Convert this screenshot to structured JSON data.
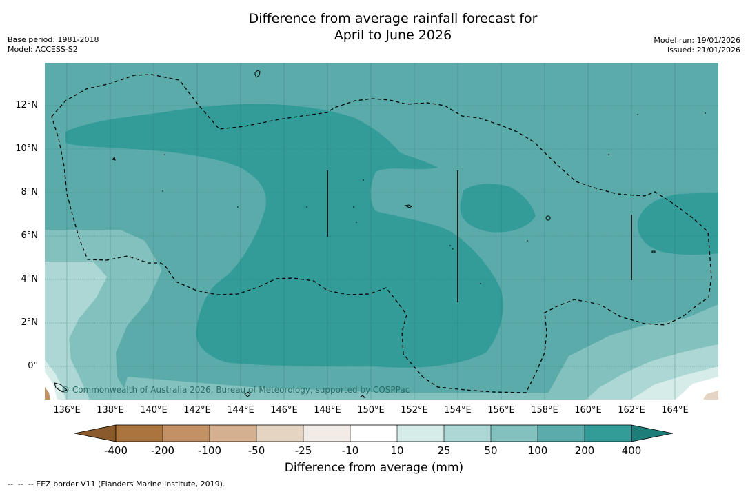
{
  "title": {
    "line1": "Difference from average rainfall forecast for",
    "line2": "April to June 2026"
  },
  "meta_left": {
    "base_period": "Base period: 1981-2018",
    "model": "Model: ACCESS-S2"
  },
  "meta_right": {
    "model_run": "Model run: 19/01/2026",
    "issued": "Issued: 21/01/2026"
  },
  "axes": {
    "lat_labels": [
      "12°N",
      "10°N",
      "8°N",
      "6°N",
      "4°N",
      "2°N",
      "0°"
    ],
    "lon_labels": [
      "136°E",
      "138°E",
      "140°E",
      "142°E",
      "144°E",
      "146°E",
      "148°E",
      "150°E",
      "152°E",
      "154°E",
      "156°E",
      "158°E",
      "160°E",
      "162°E",
      "164°E"
    ]
  },
  "colorbar": {
    "ticks": [
      "-400",
      "-200",
      "-100",
      "-50",
      "-25",
      "-10",
      "10",
      "25",
      "50",
      "100",
      "200",
      "400"
    ],
    "colors": [
      "#8b5a2b",
      "#a9743e",
      "#c29266",
      "#d4b08f",
      "#e6d4c2",
      "#f2ebe6",
      "#ffffff",
      "#d6ece9",
      "#acd7d4",
      "#82c1bd",
      "#5aabaa",
      "#339c98",
      "#1d7d78"
    ],
    "label": "Difference from average (mm)"
  },
  "credit": "© Commonwealth of Australia 2026, Bureau of Meteorology, supported by COSPPac",
  "footnote": "--  --  -- EEZ border V11 (Flanders Marine Institute, 2019)."
}
